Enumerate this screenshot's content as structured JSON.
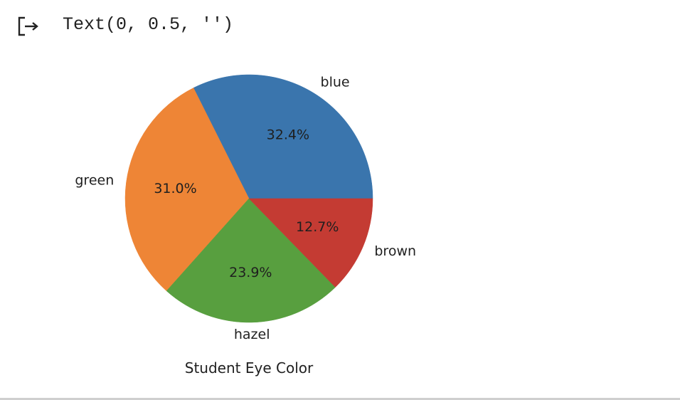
{
  "output": {
    "icon": "output-arrow-icon",
    "text": "Text(0, 0.5, '')"
  },
  "chart_data": {
    "type": "pie",
    "title": "",
    "xlabel": "Student Eye Color",
    "ylabel": "",
    "startangle": 0,
    "counterclock": true,
    "labels": [
      "blue",
      "green",
      "hazel",
      "brown"
    ],
    "values": [
      32.4,
      31.0,
      23.9,
      12.7
    ],
    "autopct": [
      "32.4%",
      "31.0%",
      "23.9%",
      "12.7%"
    ],
    "colors": [
      "#3a75ad",
      "#ee8536",
      "#589f3f",
      "#c43b33"
    ]
  }
}
